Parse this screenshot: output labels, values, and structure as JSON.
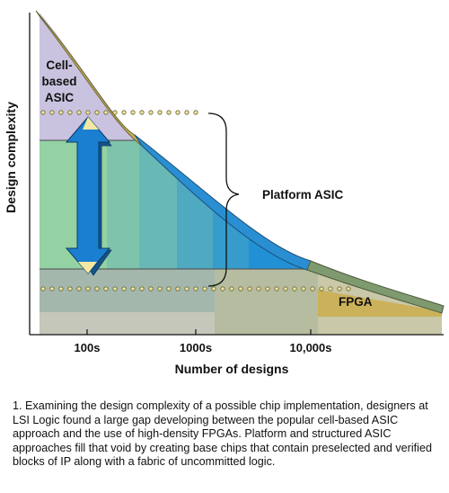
{
  "labels": {
    "y_axis": "Design complexity",
    "x_axis": "Number of designs",
    "ticks": [
      "100s",
      "1000s",
      "10,000s"
    ],
    "cell_based": [
      "Cell-",
      "based",
      "ASIC"
    ],
    "platform": "Platform ASIC",
    "fpga": "FPGA"
  },
  "caption": "1. Examining the design complexity of a possible chip implementation, designers at LSI Logic found a large gap developing between the popular cell-based ASIC approach and the use of high-density FPGAs. Platform and structured ASIC approaches fill that void by creating base chips that contain preselected and verified blocks of IP along with a fabric of uncommitted logic.",
  "colors": {
    "cell_region": "#c9c3e0",
    "olive_band": "#c2b45a",
    "blue_band": "#2a8fd2",
    "fpga_band": "#cbb15a",
    "platform_gradient": [
      "#94d2a3",
      "#7ec4ac",
      "#68b8b6",
      "#4fa9c0",
      "#369ccc",
      "#2290d5"
    ],
    "fpga_region": "#c5c9b2",
    "arrow": "#1a7fd0",
    "dots": "#ede3a0"
  }
}
